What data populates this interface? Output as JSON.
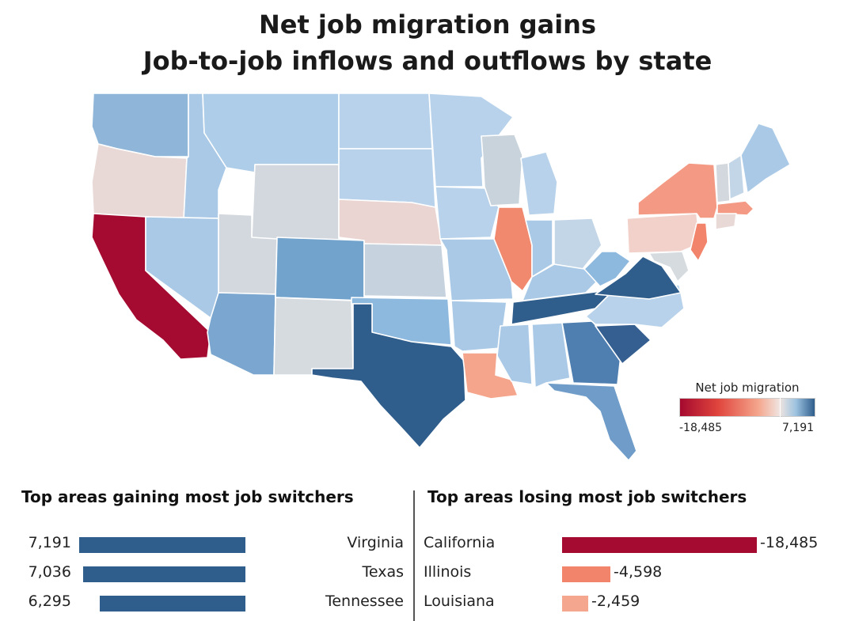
{
  "title_line1": "Net job migration gains",
  "title_line2": "Job-to-job inflows and outflows by state",
  "legend": {
    "title": "Net job migration",
    "min_label": "-18,485",
    "max_label": "7,191",
    "min": -18485,
    "max": 7191,
    "colors": [
      "#a50a30",
      "#e0443c",
      "#f4a58c",
      "#f0e4e0",
      "#9dc3e0",
      "#2f5d8c"
    ]
  },
  "map": {
    "states": [
      {
        "name": "WA",
        "color": "#8fb6d8"
      },
      {
        "name": "OR",
        "color": "#e8d8d6"
      },
      {
        "name": "CA",
        "color": "#a50a30"
      },
      {
        "name": "ID",
        "color": "#a9c9e6"
      },
      {
        "name": "NV",
        "color": "#a9c9e6"
      },
      {
        "name": "MT",
        "color": "#aecde8"
      },
      {
        "name": "WY",
        "color": "#d3d8de"
      },
      {
        "name": "UT",
        "color": "#d3d8de"
      },
      {
        "name": "AZ",
        "color": "#7aa6cf"
      },
      {
        "name": "CO",
        "color": "#72a3cc"
      },
      {
        "name": "NM",
        "color": "#d6dbe0"
      },
      {
        "name": "ND",
        "color": "#b7d2ea"
      },
      {
        "name": "SD",
        "color": "#b7d2ea"
      },
      {
        "name": "NE",
        "color": "#ead5d2"
      },
      {
        "name": "KS",
        "color": "#c6d3df"
      },
      {
        "name": "OK",
        "color": "#8db9de"
      },
      {
        "name": "TX",
        "color": "#2f5d8c"
      },
      {
        "name": "MN",
        "color": "#b7d2ea"
      },
      {
        "name": "IA",
        "color": "#b7d2ea"
      },
      {
        "name": "MO",
        "color": "#a9c9e6"
      },
      {
        "name": "AR",
        "color": "#a9c9e6"
      },
      {
        "name": "LA",
        "color": "#f4a58c"
      },
      {
        "name": "WI",
        "color": "#c9d3dc"
      },
      {
        "name": "IL",
        "color": "#f0896e"
      },
      {
        "name": "MI",
        "color": "#b7d2ea"
      },
      {
        "name": "IN",
        "color": "#a9c9e6"
      },
      {
        "name": "OH",
        "color": "#c3d6e8"
      },
      {
        "name": "KY",
        "color": "#a9c9e6"
      },
      {
        "name": "TN",
        "color": "#2f5d8c"
      },
      {
        "name": "MS",
        "color": "#a9c9e6"
      },
      {
        "name": "AL",
        "color": "#a9c9e6"
      },
      {
        "name": "GA",
        "color": "#4f7fb0"
      },
      {
        "name": "FL",
        "color": "#6f9cc8"
      },
      {
        "name": "SC",
        "color": "#355f90"
      },
      {
        "name": "NC",
        "color": "#b7d2ea"
      },
      {
        "name": "VA",
        "color": "#2f5d8c"
      },
      {
        "name": "WV",
        "color": "#8db9de"
      },
      {
        "name": "PA",
        "color": "#f1d1ca"
      },
      {
        "name": "NY",
        "color": "#f49a84"
      },
      {
        "name": "NJ",
        "color": "#f2846b"
      },
      {
        "name": "VT",
        "color": "#d3d8de"
      },
      {
        "name": "NH",
        "color": "#c3d6e8"
      },
      {
        "name": "ME",
        "color": "#a9c9e6"
      },
      {
        "name": "MA",
        "color": "#f49a84"
      },
      {
        "name": "CT",
        "color": "#e8d8d6"
      },
      {
        "name": "MD",
        "color": "#d6dbe0"
      }
    ]
  },
  "gaining": {
    "heading": "Top areas gaining most job switchers",
    "color": "#2f5d8c",
    "rows": [
      {
        "state": "Virginia",
        "value": 7191,
        "label": "7,191"
      },
      {
        "state": "Texas",
        "value": 7036,
        "label": "7,036"
      },
      {
        "state": "Tennessee",
        "value": 6295,
        "label": "6,295"
      }
    ]
  },
  "losing": {
    "heading": "Top areas losing most job switchers",
    "rows": [
      {
        "state": "California",
        "value": -18485,
        "label": "-18,485",
        "color": "#a50a30"
      },
      {
        "state": "Illinois",
        "value": -4598,
        "label": "-4,598",
        "color": "#f2846b"
      },
      {
        "state": "Louisiana",
        "value": -2459,
        "label": "-2,459",
        "color": "#f5a68e"
      }
    ]
  }
}
